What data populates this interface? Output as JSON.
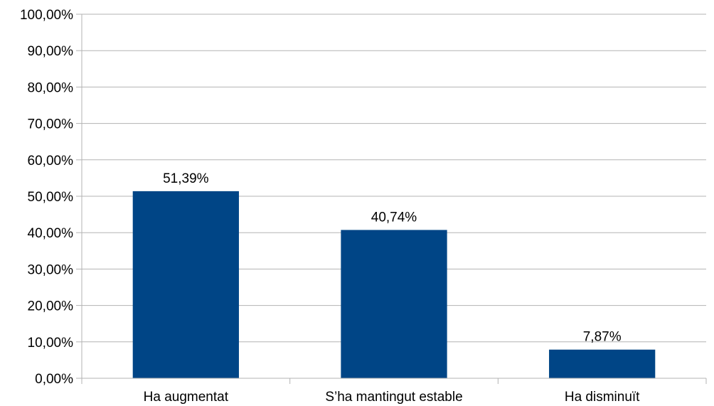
{
  "chart_data": {
    "type": "bar",
    "categories": [
      "Ha augmentat",
      "S’ha mantingut estable",
      "Ha disminuït"
    ],
    "values": [
      51.39,
      40.74,
      7.87
    ],
    "value_labels": [
      "51,39%",
      "40,74%",
      "7,87%"
    ],
    "y_ticks": [
      "0,00%",
      "10,00%",
      "20,00%",
      "30,00%",
      "40,00%",
      "50,00%",
      "60,00%",
      "70,00%",
      "80,00%",
      "90,00%",
      "100,00%"
    ],
    "ylim": [
      0,
      100
    ],
    "grid": true,
    "bar_color": "#004586",
    "grid_color": "#b3b3b3",
    "title": "",
    "xlabel": "",
    "ylabel": ""
  }
}
